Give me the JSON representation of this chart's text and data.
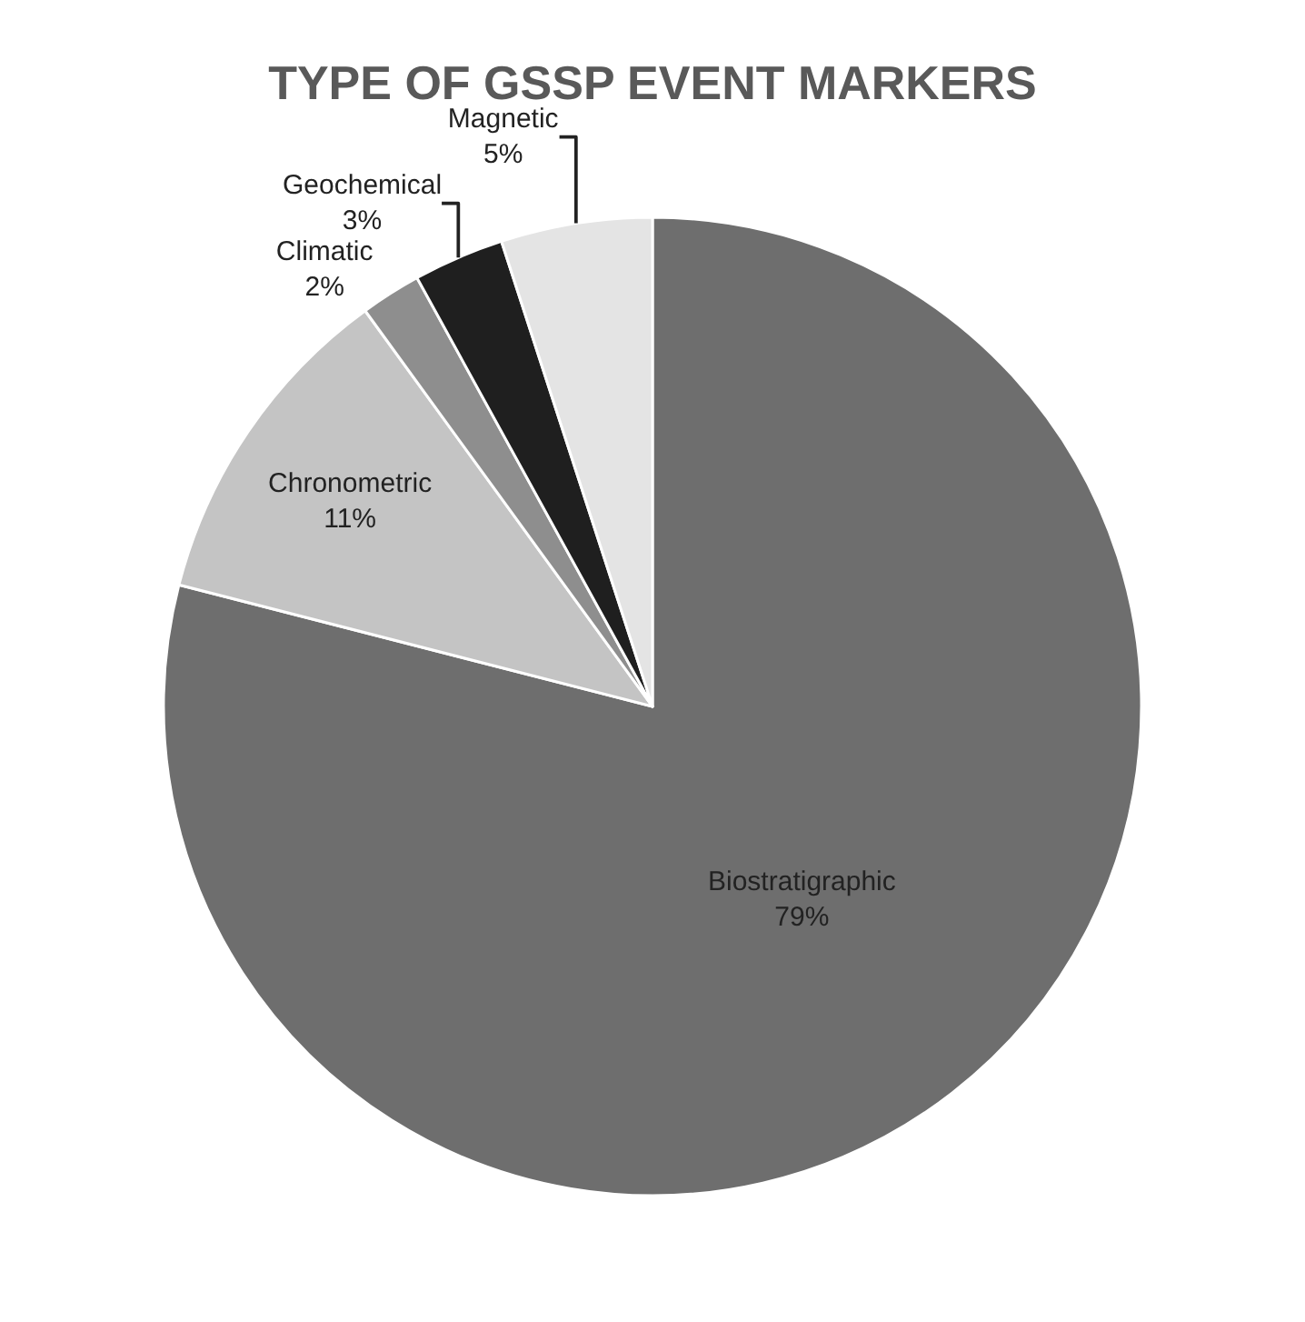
{
  "chart_data": {
    "type": "pie",
    "title": "TYPE OF GSSP EVENT MARKERS",
    "categories": [
      "Biostratigraphic",
      "Chronometric",
      "Climatic",
      "Geochemical",
      "Magnetic"
    ],
    "values": [
      79,
      11,
      2,
      3,
      5
    ],
    "value_labels": [
      "79%",
      "11%",
      "2%",
      "3%",
      "5%"
    ],
    "colors": [
      "#6e6e6e",
      "#c4c4c4",
      "#8e8e8e",
      "#1f1f1f",
      "#e4e4e4"
    ],
    "legend": false
  }
}
